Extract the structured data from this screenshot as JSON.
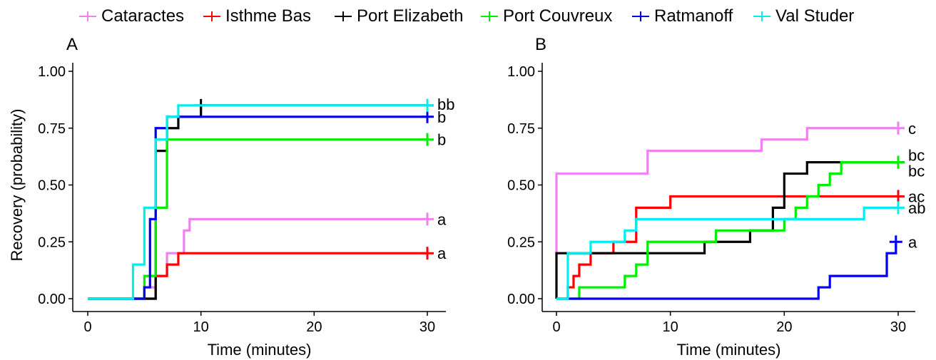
{
  "legend": {
    "items": [
      {
        "label": "Cataractes",
        "color": "#EE82EE"
      },
      {
        "label": "Isthme Bas",
        "color": "#FF0000"
      },
      {
        "label": "Port Elizabeth",
        "color": "#000000"
      },
      {
        "label": "Port Couvreux",
        "color": "#00EE00"
      },
      {
        "label": "Ratmanoff",
        "color": "#0000EE"
      },
      {
        "label": "Val Studer",
        "color": "#00EEEE"
      }
    ]
  },
  "chart_data": [
    {
      "type": "line",
      "panel_label": "A",
      "xlabel": "Time (minutes)",
      "ylabel": "Recovery (probability)",
      "xlim": [
        -1,
        31.5
      ],
      "ylim": [
        -0.05,
        1.05
      ],
      "x_ticks": [
        0,
        10,
        20,
        30
      ],
      "y_ticks": [
        0,
        0.25,
        0.5,
        0.75,
        1.0
      ],
      "y_tick_labels": [
        "0.00",
        "0.25",
        "0.50",
        "0.75",
        "1.00"
      ],
      "grid": false,
      "series": [
        {
          "name": "Cataractes",
          "color": "#EE82EE",
          "end_label": "a",
          "x": [
            0,
            4,
            5,
            6,
            7,
            8,
            8.5,
            9,
            30
          ],
          "y": [
            0,
            0,
            0.05,
            0.1,
            0.2,
            0.2,
            0.3,
            0.35,
            0.35
          ],
          "censor": [
            30
          ]
        },
        {
          "name": "Isthme Bas",
          "color": "#FF0000",
          "end_label": "a",
          "x": [
            0,
            5,
            6,
            7,
            8,
            30
          ],
          "y": [
            0,
            0,
            0.1,
            0.15,
            0.2,
            0.2
          ],
          "censor": [
            30
          ]
        },
        {
          "name": "Port Elizabeth",
          "color": "#000000",
          "end_label": "b",
          "x": [
            0,
            5,
            6,
            7,
            8,
            10,
            30
          ],
          "y": [
            0,
            0,
            0.65,
            0.75,
            0.8,
            0.85,
            0.85
          ],
          "censor": [
            10,
            30
          ]
        },
        {
          "name": "Port Couvreux",
          "color": "#00EE00",
          "end_label": "b",
          "x": [
            0,
            4,
            5,
            6,
            7,
            30
          ],
          "y": [
            0,
            0,
            0.1,
            0.4,
            0.7,
            0.7
          ],
          "censor": [
            30
          ]
        },
        {
          "name": "Ratmanoff",
          "color": "#0000EE",
          "end_label": "b",
          "x": [
            0,
            4,
            5,
            5.5,
            6,
            7,
            30
          ],
          "y": [
            0,
            0,
            0.05,
            0.35,
            0.75,
            0.8,
            0.8
          ],
          "censor": [
            30
          ]
        },
        {
          "name": "Val Studer",
          "color": "#00EEEE",
          "end_label": "bb",
          "x": [
            0,
            4,
            5,
            6,
            7,
            8,
            30
          ],
          "y": [
            0,
            0.15,
            0.4,
            0.7,
            0.8,
            0.85,
            0.85
          ],
          "censor": [
            30
          ]
        }
      ]
    },
    {
      "type": "line",
      "panel_label": "B",
      "xlabel": "Time (minutes)",
      "ylabel": "",
      "xlim": [
        -1,
        31.5
      ],
      "ylim": [
        -0.05,
        1.05
      ],
      "x_ticks": [
        0,
        10,
        20,
        30
      ],
      "y_ticks": [
        0,
        0.25,
        0.5,
        0.75,
        1.0
      ],
      "y_tick_labels": [
        "0.00",
        "0.25",
        "0.50",
        "0.75",
        "1.00"
      ],
      "grid": false,
      "series": [
        {
          "name": "Cataractes",
          "color": "#EE82EE",
          "end_label": "c",
          "x": [
            0,
            0,
            8,
            18,
            22,
            30
          ],
          "y": [
            0.2,
            0.55,
            0.65,
            0.7,
            0.75,
            0.75
          ],
          "censor": [
            30
          ]
        },
        {
          "name": "Isthme Bas",
          "color": "#FF0000",
          "end_label": "ac",
          "x": [
            0,
            1,
            1.5,
            2,
            3,
            5,
            7,
            10,
            30
          ],
          "y": [
            0,
            0.05,
            0.1,
            0.15,
            0.2,
            0.25,
            0.4,
            0.45,
            0.45
          ],
          "censor": [
            30
          ]
        },
        {
          "name": "Port Elizabeth",
          "color": "#000000",
          "end_label": "bc",
          "x": [
            0,
            0,
            13,
            17,
            19,
            20,
            22,
            25,
            30
          ],
          "y": [
            0,
            0.2,
            0.25,
            0.3,
            0.4,
            0.55,
            0.6,
            0.6,
            0.6
          ],
          "censor": [
            30
          ]
        },
        {
          "name": "Port Couvreux",
          "color": "#00EE00",
          "end_label": "bc",
          "x": [
            0,
            2,
            6,
            7,
            8,
            14,
            20,
            21,
            22,
            23,
            24,
            25,
            30
          ],
          "y": [
            0,
            0.05,
            0.1,
            0.15,
            0.25,
            0.3,
            0.35,
            0.4,
            0.45,
            0.5,
            0.55,
            0.6,
            0.6
          ],
          "censor": [
            30
          ]
        },
        {
          "name": "Ratmanoff",
          "color": "#0000EE",
          "end_label": "a",
          "x": [
            0,
            23,
            23.5,
            24,
            29,
            29.8
          ],
          "y": [
            0,
            0.05,
            0.05,
            0.1,
            0.2,
            0.25
          ],
          "censor": [
            29.8
          ]
        },
        {
          "name": "Val Studer",
          "color": "#00EEEE",
          "end_label": "ab",
          "x": [
            0,
            1,
            3,
            6,
            7,
            27,
            30
          ],
          "y": [
            0,
            0.2,
            0.25,
            0.3,
            0.35,
            0.4,
            0.4
          ],
          "censor": [
            30
          ]
        }
      ]
    }
  ]
}
